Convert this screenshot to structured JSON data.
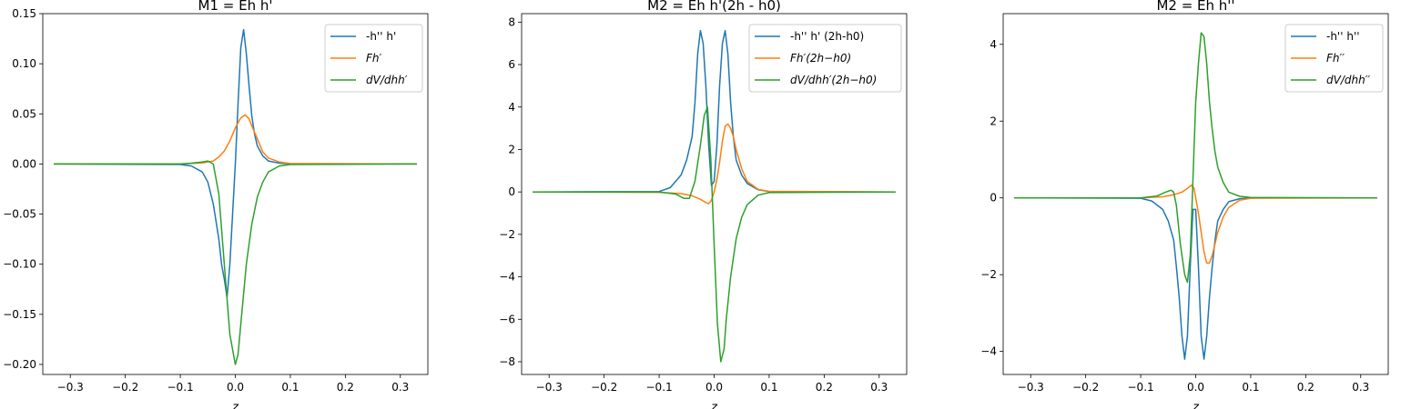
{
  "chart_data": [
    {
      "type": "line",
      "title": "M1 = Eh h'",
      "xlabel": "z",
      "ylabel": "",
      "xlim": [
        -0.35,
        0.35
      ],
      "ylim": [
        -0.21,
        0.15
      ],
      "xticks": [
        -0.3,
        -0.2,
        -0.1,
        0.0,
        0.1,
        0.2,
        0.3
      ],
      "xtick_labels": [
        "−0.3",
        "−0.2",
        "−0.1",
        "0.0",
        "0.1",
        "0.2",
        "0.3"
      ],
      "yticks": [
        -0.2,
        -0.15,
        -0.1,
        -0.05,
        0.0,
        0.05,
        0.1,
        0.15
      ],
      "ytick_labels": [
        "−0.20",
        "−0.15",
        "−0.10",
        "−0.05",
        "0.00",
        "0.05",
        "0.10",
        "0.15"
      ],
      "legend_position": "top-right",
      "series": [
        {
          "name": "-h'' h'",
          "color": "#1f77b4",
          "x": [
            -0.33,
            -0.1,
            -0.08,
            -0.06,
            -0.05,
            -0.04,
            -0.03,
            -0.025,
            -0.02,
            -0.015,
            -0.01,
            -0.005,
            0.0,
            0.005,
            0.01,
            0.015,
            0.02,
            0.025,
            0.03,
            0.035,
            0.04,
            0.05,
            0.06,
            0.08,
            0.1,
            0.33
          ],
          "y": [
            0.0,
            -0.0005,
            -0.002,
            -0.008,
            -0.018,
            -0.04,
            -0.075,
            -0.1,
            -0.115,
            -0.133,
            -0.1,
            -0.05,
            0.0,
            0.06,
            0.116,
            0.134,
            0.11,
            0.078,
            0.048,
            0.03,
            0.018,
            0.008,
            0.003,
            0.0008,
            0.0002,
            0.0
          ]
        },
        {
          "name": "Fh′",
          "color": "#ff7f0e",
          "x": [
            -0.33,
            -0.1,
            -0.06,
            -0.04,
            -0.03,
            -0.02,
            -0.01,
            0.0,
            0.01,
            0.018,
            0.025,
            0.03,
            0.04,
            0.05,
            0.06,
            0.08,
            0.1,
            0.33
          ],
          "y": [
            0.0,
            0.0,
            0.001,
            0.003,
            0.007,
            0.013,
            0.023,
            0.036,
            0.046,
            0.049,
            0.045,
            0.038,
            0.025,
            0.012,
            0.006,
            0.002,
            0.0005,
            0.0
          ]
        },
        {
          "name": "dV/dhh′",
          "color": "#2ca02c",
          "x": [
            -0.33,
            -0.1,
            -0.08,
            -0.06,
            -0.05,
            -0.04,
            -0.03,
            -0.02,
            -0.01,
            0.0,
            0.005,
            0.01,
            0.02,
            0.03,
            0.04,
            0.05,
            0.06,
            0.08,
            0.1,
            0.33
          ],
          "y": [
            0.0,
            0.0,
            0.0008,
            0.002,
            0.003,
            0.0,
            -0.03,
            -0.1,
            -0.17,
            -0.2,
            -0.19,
            -0.16,
            -0.1,
            -0.06,
            -0.033,
            -0.018,
            -0.008,
            -0.002,
            -0.0005,
            0.0
          ]
        }
      ]
    },
    {
      "type": "line",
      "title": "M2 = Eh h'(2h - h0)",
      "xlabel": "z",
      "ylabel": "",
      "xlim": [
        -0.35,
        0.35
      ],
      "ylim": [
        -8.6,
        8.4
      ],
      "xticks": [
        -0.3,
        -0.2,
        -0.1,
        0.0,
        0.1,
        0.2,
        0.3
      ],
      "xtick_labels": [
        "−0.3",
        "−0.2",
        "−0.1",
        "0.0",
        "0.1",
        "0.2",
        "0.3"
      ],
      "yticks": [
        -8,
        -6,
        -4,
        -2,
        0,
        2,
        4,
        6,
        8
      ],
      "ytick_labels": [
        "−8",
        "−6",
        "−4",
        "−2",
        "0",
        "2",
        "4",
        "6",
        "8"
      ],
      "legend_position": "top-right",
      "series": [
        {
          "name": "-h'' h' (2h-h0)",
          "color": "#1f77b4",
          "x": [
            -0.33,
            -0.1,
            -0.08,
            -0.06,
            -0.05,
            -0.04,
            -0.035,
            -0.03,
            -0.025,
            -0.02,
            -0.015,
            -0.01,
            -0.005,
            0.0,
            0.005,
            0.01,
            0.015,
            0.02,
            0.025,
            0.03,
            0.035,
            0.04,
            0.05,
            0.06,
            0.08,
            0.1,
            0.33
          ],
          "y": [
            0.0,
            0.02,
            0.2,
            0.8,
            1.5,
            2.6,
            4.2,
            6.5,
            7.6,
            7.0,
            5.0,
            2.2,
            0.3,
            0.5,
            2.2,
            5.0,
            7.0,
            7.6,
            6.5,
            4.2,
            2.6,
            1.5,
            0.8,
            0.4,
            0.1,
            0.02,
            0.0
          ]
        },
        {
          "name": "Fh′(2h−h0)",
          "color": "#ff7f0e",
          "x": [
            -0.33,
            -0.1,
            -0.06,
            -0.04,
            -0.025,
            -0.015,
            -0.01,
            -0.005,
            0.0,
            0.005,
            0.01,
            0.015,
            0.02,
            0.025,
            0.03,
            0.035,
            0.04,
            0.05,
            0.06,
            0.08,
            0.1,
            0.33
          ],
          "y": [
            0.0,
            -0.02,
            -0.08,
            -0.18,
            -0.35,
            -0.5,
            -0.55,
            -0.4,
            0.0,
            0.6,
            1.4,
            2.4,
            3.1,
            3.2,
            3.0,
            2.6,
            2.0,
            1.1,
            0.5,
            0.12,
            0.03,
            0.0
          ]
        },
        {
          "name": "dV/dhh′(2h−h0)",
          "color": "#2ca02c",
          "x": [
            -0.33,
            -0.1,
            -0.07,
            -0.055,
            -0.045,
            -0.035,
            -0.025,
            -0.018,
            -0.012,
            -0.006,
            0.0,
            0.006,
            0.012,
            0.018,
            0.022,
            0.03,
            0.04,
            0.05,
            0.06,
            0.08,
            0.1,
            0.33
          ],
          "y": [
            0.0,
            0.0,
            -0.1,
            -0.3,
            -0.3,
            0.5,
            2.2,
            3.6,
            4.0,
            1.5,
            -2.5,
            -6.2,
            -8.0,
            -7.4,
            -6.0,
            -4.0,
            -2.2,
            -1.2,
            -0.6,
            -0.15,
            -0.03,
            0.0
          ]
        }
      ]
    },
    {
      "type": "line",
      "title": "M2 = Eh h''",
      "xlabel": "z",
      "ylabel": "",
      "xlim": [
        -0.35,
        0.35
      ],
      "ylim": [
        -4.6,
        4.8
      ],
      "xticks": [
        -0.3,
        -0.2,
        -0.1,
        0.0,
        0.1,
        0.2,
        0.3
      ],
      "xtick_labels": [
        "−0.3",
        "−0.2",
        "−0.1",
        "0.0",
        "0.1",
        "0.2",
        "0.3"
      ],
      "yticks": [
        -4,
        -2,
        0,
        2,
        4
      ],
      "ytick_labels": [
        "−4",
        "−2",
        "0",
        "2",
        "4"
      ],
      "legend_position": "top-right",
      "series": [
        {
          "name": "-h'' h''",
          "color": "#1f77b4",
          "x": [
            -0.33,
            -0.1,
            -0.08,
            -0.06,
            -0.05,
            -0.04,
            -0.035,
            -0.03,
            -0.025,
            -0.02,
            -0.015,
            -0.01,
            -0.005,
            0.0,
            0.005,
            0.01,
            0.015,
            0.02,
            0.025,
            0.03,
            0.035,
            0.04,
            0.05,
            0.06,
            0.08,
            0.1,
            0.33
          ],
          "y": [
            0.0,
            -0.01,
            -0.08,
            -0.3,
            -0.6,
            -1.1,
            -1.8,
            -2.6,
            -3.6,
            -4.2,
            -3.6,
            -1.8,
            -0.3,
            -0.3,
            -1.8,
            -3.6,
            -4.2,
            -3.6,
            -2.6,
            -1.8,
            -1.1,
            -0.6,
            -0.3,
            -0.1,
            -0.02,
            0.0,
            0.0
          ]
        },
        {
          "name": "Fh′′",
          "color": "#ff7f0e",
          "x": [
            -0.33,
            -0.1,
            -0.06,
            -0.04,
            -0.025,
            -0.015,
            -0.008,
            -0.003,
            0.0,
            0.005,
            0.01,
            0.015,
            0.02,
            0.025,
            0.03,
            0.035,
            0.04,
            0.05,
            0.06,
            0.08,
            0.1,
            0.33
          ],
          "y": [
            0.0,
            0.0,
            0.03,
            0.08,
            0.15,
            0.25,
            0.33,
            0.25,
            0.0,
            -0.4,
            -0.9,
            -1.4,
            -1.7,
            -1.7,
            -1.5,
            -1.2,
            -0.9,
            -0.5,
            -0.25,
            -0.06,
            -0.01,
            0.0
          ]
        },
        {
          "name": "dV/dhh′′",
          "color": "#2ca02c",
          "x": [
            -0.33,
            -0.1,
            -0.07,
            -0.055,
            -0.045,
            -0.04,
            -0.035,
            -0.028,
            -0.02,
            -0.015,
            -0.01,
            -0.005,
            0.0,
            0.005,
            0.01,
            0.015,
            0.02,
            0.025,
            0.03,
            0.035,
            0.04,
            0.05,
            0.06,
            0.08,
            0.1,
            0.33
          ],
          "y": [
            0.0,
            0.0,
            0.05,
            0.15,
            0.2,
            0.15,
            -0.2,
            -1.2,
            -2.0,
            -2.2,
            -1.5,
            0.5,
            2.5,
            3.5,
            4.3,
            4.2,
            3.5,
            2.5,
            1.8,
            1.2,
            0.8,
            0.4,
            0.15,
            0.04,
            0.01,
            0.0
          ]
        }
      ]
    }
  ]
}
